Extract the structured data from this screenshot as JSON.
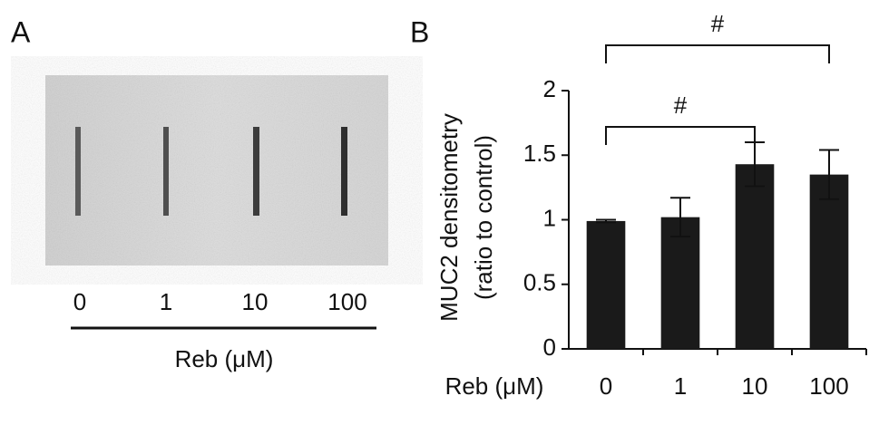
{
  "panel_a": {
    "label": "A",
    "lanes": [
      "0",
      "1",
      "10",
      "100"
    ],
    "xlabel": "Reb (μM)"
  },
  "chart_data": {
    "type": "bar",
    "panel_label": "B",
    "ylabel": [
      "MUC2 densitometry",
      "(ratio to control)"
    ],
    "xlabel": "Reb (μM)",
    "categories": [
      "0",
      "1",
      "10",
      "100"
    ],
    "values": [
      0.99,
      1.02,
      1.43,
      1.35
    ],
    "errors": [
      0.01,
      0.15,
      0.17,
      0.19
    ],
    "color": "#1a1a1a",
    "ylim": [
      0,
      2
    ],
    "yticks": [
      0,
      0.5,
      1,
      1.5,
      2
    ],
    "annotations": [
      {
        "label": "#",
        "between": [
          "0",
          "10"
        ]
      },
      {
        "label": "#",
        "between": [
          "0",
          "100"
        ]
      }
    ]
  }
}
